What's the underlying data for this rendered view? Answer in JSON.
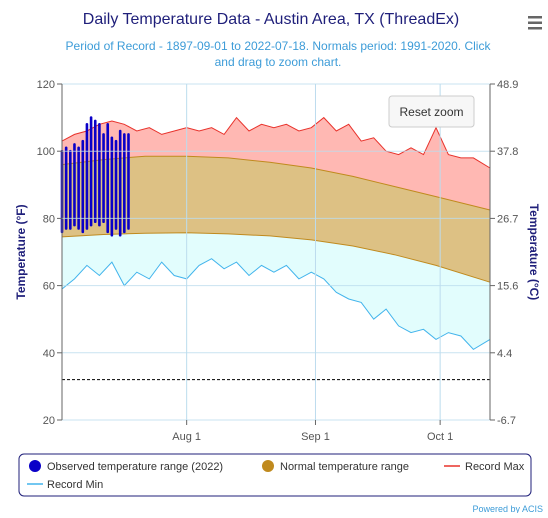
{
  "menu_icon": "hamburger-menu-icon",
  "reset_zoom_label": "Reset zoom",
  "credits": "Powered by ACIS",
  "colors": {
    "title": "#1f1f7a",
    "subtitle": "#3d9cd8",
    "axis_label": "#1f1f7a",
    "record_max_fill": "#ffb8b3",
    "record_max_line": "#e8322b",
    "normal_fill": "#ddc184",
    "normal_line": "#c08a1e",
    "record_min_fill": "#e2fdfd",
    "record_min_line": "#42b4ec",
    "observed": "#0a00c8",
    "grid": "#bcdcee"
  },
  "chart_data": {
    "type": "area",
    "title": "Daily Temperature Data - Austin Area, TX (ThreadEx)",
    "subtitle": "Period of Record - 1897-09-01 to 2022-07-18. Normals period: 1991-2020. Click and drag to zoom chart.",
    "ylabel": "Temperature (°F)",
    "y2label": "Temperature (°C)",
    "ylim": [
      20,
      120
    ],
    "y_ticks": [
      20,
      40,
      60,
      80,
      100,
      120
    ],
    "y2_ticks": [
      "-6.7",
      "4.4",
      "15.6",
      "26.7",
      "37.8",
      "48.9"
    ],
    "x_start": "2022-07-02",
    "x_end": "2022-10-13",
    "x_ticks": [
      {
        "date": "2022-08-01",
        "label": "Aug 1"
      },
      {
        "date": "2022-09-01",
        "label": "Sep 1"
      },
      {
        "date": "2022-10-01",
        "label": "Oct 1"
      }
    ],
    "grid": true,
    "legend_position": "bottom",
    "legend": [
      {
        "label": "Observed temperature range (2022)",
        "symbol": "dot"
      },
      {
        "label": "Normal temperature range",
        "symbol": "dot"
      },
      {
        "label": "Record Max",
        "symbol": "line"
      },
      {
        "label": "Record Min",
        "symbol": "line"
      }
    ],
    "reference_line": {
      "value": 32,
      "style": "dashed"
    },
    "normal_max": {
      "dates": [
        "2022-07-02",
        "2022-07-12",
        "2022-07-22",
        "2022-08-01",
        "2022-08-11",
        "2022-08-21",
        "2022-08-31",
        "2022-09-10",
        "2022-09-20",
        "2022-09-30",
        "2022-10-13"
      ],
      "values": [
        96,
        97.5,
        98.5,
        98.5,
        98,
        96.7,
        95,
        92.5,
        89.5,
        86.5,
        82.5
      ]
    },
    "normal_min": {
      "dates": [
        "2022-07-02",
        "2022-07-12",
        "2022-07-22",
        "2022-08-01",
        "2022-08-11",
        "2022-08-21",
        "2022-08-31",
        "2022-09-10",
        "2022-09-20",
        "2022-09-30",
        "2022-10-13"
      ],
      "values": [
        74.5,
        75.2,
        75.6,
        75.7,
        75.4,
        74.8,
        73.6,
        71.8,
        69.2,
        66,
        61
      ]
    },
    "record_max": {
      "dates": [
        "2022-07-02",
        "2022-07-05",
        "2022-07-08",
        "2022-07-11",
        "2022-07-14",
        "2022-07-17",
        "2022-07-20",
        "2022-07-23",
        "2022-07-26",
        "2022-07-29",
        "2022-08-01",
        "2022-08-04",
        "2022-08-07",
        "2022-08-10",
        "2022-08-13",
        "2022-08-16",
        "2022-08-19",
        "2022-08-22",
        "2022-08-25",
        "2022-08-28",
        "2022-08-31",
        "2022-09-03",
        "2022-09-06",
        "2022-09-09",
        "2022-09-12",
        "2022-09-15",
        "2022-09-18",
        "2022-09-21",
        "2022-09-24",
        "2022-09-27",
        "2022-09-30",
        "2022-10-03",
        "2022-10-06",
        "2022-10-09",
        "2022-10-13"
      ],
      "values": [
        103,
        105,
        106,
        108,
        109,
        108,
        106,
        107,
        105,
        106,
        107,
        106,
        107,
        105,
        110,
        106,
        108,
        107,
        108,
        106,
        107,
        110,
        106,
        108,
        103,
        104,
        100,
        99,
        101,
        99,
        107,
        99,
        98,
        98,
        95
      ]
    },
    "record_min": {
      "dates": [
        "2022-07-02",
        "2022-07-05",
        "2022-07-08",
        "2022-07-11",
        "2022-07-14",
        "2022-07-17",
        "2022-07-20",
        "2022-07-23",
        "2022-07-26",
        "2022-07-29",
        "2022-08-01",
        "2022-08-04",
        "2022-08-07",
        "2022-08-10",
        "2022-08-13",
        "2022-08-16",
        "2022-08-19",
        "2022-08-22",
        "2022-08-25",
        "2022-08-28",
        "2022-08-31",
        "2022-09-03",
        "2022-09-06",
        "2022-09-09",
        "2022-09-12",
        "2022-09-15",
        "2022-09-18",
        "2022-09-21",
        "2022-09-24",
        "2022-09-27",
        "2022-09-30",
        "2022-10-03",
        "2022-10-06",
        "2022-10-09",
        "2022-10-13"
      ],
      "values": [
        59,
        62,
        66,
        63,
        67,
        60,
        64,
        62,
        67,
        63,
        62,
        66,
        68,
        65,
        67,
        63,
        66,
        64,
        66,
        62,
        64,
        62,
        58,
        56,
        55,
        50,
        53,
        48,
        46,
        47,
        44,
        46,
        45,
        41,
        44
      ]
    },
    "observed": {
      "dates": [
        "2022-07-02",
        "2022-07-03",
        "2022-07-04",
        "2022-07-05",
        "2022-07-06",
        "2022-07-07",
        "2022-07-08",
        "2022-07-09",
        "2022-07-10",
        "2022-07-11",
        "2022-07-12",
        "2022-07-13",
        "2022-07-14",
        "2022-07-15",
        "2022-07-16",
        "2022-07-17",
        "2022-07-18"
      ],
      "min": [
        76,
        77,
        77,
        78,
        77,
        76,
        77,
        78,
        79,
        78,
        79,
        76,
        75,
        77,
        75,
        76,
        77
      ],
      "max": [
        100,
        101,
        100,
        102,
        101,
        103,
        108,
        110,
        109,
        108,
        105,
        108,
        104,
        103,
        106,
        105,
        105
      ]
    }
  }
}
